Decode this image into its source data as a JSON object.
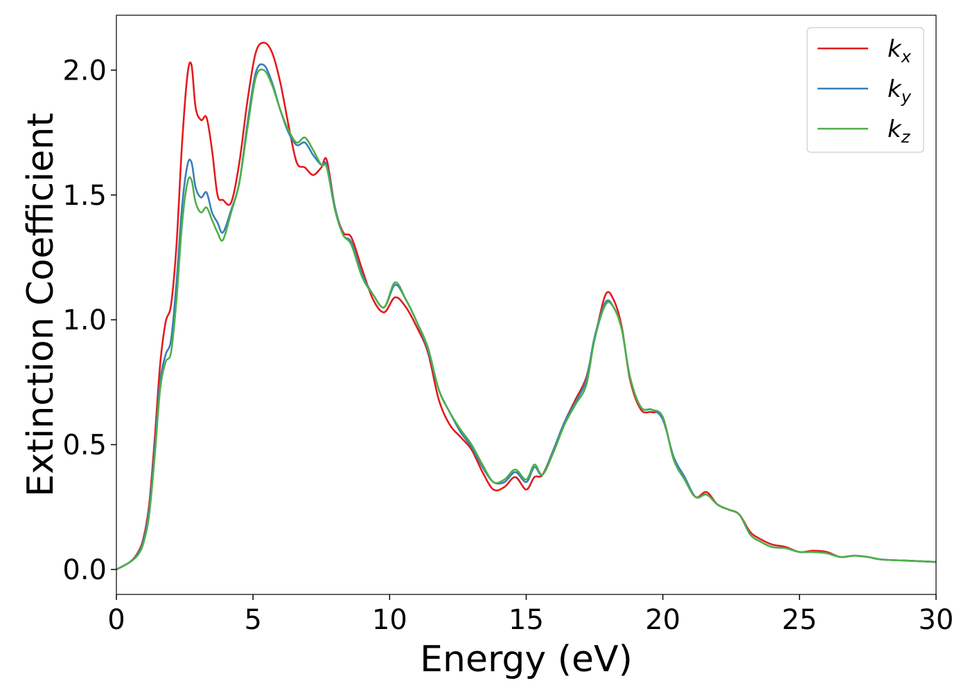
{
  "chart_data": {
    "type": "line",
    "title": "",
    "xlabel": "Energy (eV)",
    "ylabel": "Extinction Coefficient",
    "xlim": [
      0,
      30
    ],
    "ylim": [
      -0.1,
      2.22
    ],
    "xticks": [
      0,
      5,
      10,
      15,
      20,
      25,
      30
    ],
    "xtick_labels": [
      "0",
      "5",
      "10",
      "15",
      "20",
      "25",
      "30"
    ],
    "yticks": [
      0.0,
      0.5,
      1.0,
      1.5,
      2.0
    ],
    "ytick_labels": [
      "0.0",
      "0.5",
      "1.0",
      "1.5",
      "2.0"
    ],
    "grid": false,
    "legend": "top-right",
    "series": [
      {
        "name": "k_x",
        "legend_base": "k",
        "legend_sub": "x",
        "color": "#e41a1c",
        "x": [
          0,
          0.5,
          0.8,
          1.0,
          1.2,
          1.4,
          1.6,
          1.8,
          2.0,
          2.2,
          2.4,
          2.6,
          2.75,
          2.9,
          3.1,
          3.3,
          3.5,
          3.7,
          3.9,
          4.2,
          4.5,
          4.8,
          5.1,
          5.4,
          5.7,
          6.0,
          6.3,
          6.6,
          6.9,
          7.2,
          7.5,
          7.7,
          8.0,
          8.3,
          8.6,
          9.0,
          9.4,
          9.8,
          10.2,
          10.6,
          11.0,
          11.4,
          11.8,
          12.2,
          12.6,
          13.0,
          13.4,
          13.8,
          14.2,
          14.6,
          15.0,
          15.3,
          15.6,
          16.0,
          16.4,
          16.8,
          17.2,
          17.5,
          17.9,
          18.2,
          18.5,
          18.8,
          19.2,
          19.6,
          20.0,
          20.4,
          20.8,
          21.2,
          21.6,
          22.0,
          22.4,
          22.8,
          23.2,
          23.6,
          24.0,
          24.5,
          25.0,
          25.5,
          26.0,
          26.5,
          27.0,
          27.5,
          28.0,
          29.0,
          30.0
        ],
        "y": [
          0.0,
          0.03,
          0.07,
          0.13,
          0.26,
          0.52,
          0.82,
          0.99,
          1.06,
          1.3,
          1.7,
          1.98,
          2.02,
          1.85,
          1.8,
          1.81,
          1.68,
          1.5,
          1.48,
          1.47,
          1.63,
          1.88,
          2.07,
          2.11,
          2.07,
          1.95,
          1.78,
          1.63,
          1.61,
          1.58,
          1.61,
          1.64,
          1.45,
          1.35,
          1.33,
          1.2,
          1.08,
          1.03,
          1.09,
          1.05,
          0.97,
          0.87,
          0.68,
          0.58,
          0.53,
          0.48,
          0.39,
          0.32,
          0.33,
          0.37,
          0.32,
          0.37,
          0.38,
          0.48,
          0.59,
          0.68,
          0.77,
          0.92,
          1.1,
          1.08,
          0.97,
          0.76,
          0.64,
          0.63,
          0.61,
          0.44,
          0.36,
          0.29,
          0.31,
          0.26,
          0.24,
          0.22,
          0.15,
          0.12,
          0.1,
          0.09,
          0.07,
          0.075,
          0.07,
          0.05,
          0.055,
          0.05,
          0.04,
          0.035,
          0.03
        ]
      },
      {
        "name": "k_y",
        "legend_base": "k",
        "legend_sub": "y",
        "color": "#377eb8",
        "x": [
          0,
          0.5,
          0.8,
          1.0,
          1.2,
          1.4,
          1.6,
          1.8,
          2.0,
          2.2,
          2.4,
          2.6,
          2.75,
          2.9,
          3.1,
          3.3,
          3.5,
          3.7,
          3.9,
          4.2,
          4.5,
          4.8,
          5.1,
          5.4,
          5.7,
          6.0,
          6.3,
          6.6,
          6.9,
          7.2,
          7.5,
          7.7,
          8.0,
          8.3,
          8.6,
          9.0,
          9.4,
          9.8,
          10.2,
          10.6,
          11.0,
          11.4,
          11.8,
          12.2,
          12.6,
          13.0,
          13.4,
          13.8,
          14.2,
          14.6,
          15.0,
          15.3,
          15.6,
          16.0,
          16.4,
          16.8,
          17.2,
          17.5,
          17.9,
          18.2,
          18.5,
          18.8,
          19.2,
          19.6,
          20.0,
          20.4,
          20.8,
          21.2,
          21.6,
          22.0,
          22.4,
          22.8,
          23.2,
          23.6,
          24.0,
          24.5,
          25.0,
          25.5,
          26.0,
          26.5,
          27.0,
          27.5,
          28.0,
          29.0,
          30.0
        ],
        "y": [
          0.0,
          0.03,
          0.065,
          0.12,
          0.24,
          0.48,
          0.75,
          0.86,
          0.92,
          1.15,
          1.45,
          1.62,
          1.63,
          1.53,
          1.49,
          1.51,
          1.43,
          1.39,
          1.35,
          1.44,
          1.55,
          1.79,
          1.99,
          2.02,
          1.95,
          1.84,
          1.75,
          1.7,
          1.71,
          1.66,
          1.62,
          1.62,
          1.45,
          1.34,
          1.31,
          1.18,
          1.1,
          1.05,
          1.14,
          1.08,
          0.99,
          0.88,
          0.72,
          0.63,
          0.55,
          0.49,
          0.41,
          0.35,
          0.35,
          0.39,
          0.35,
          0.41,
          0.38,
          0.48,
          0.59,
          0.67,
          0.76,
          0.93,
          1.07,
          1.05,
          0.96,
          0.77,
          0.65,
          0.64,
          0.6,
          0.45,
          0.37,
          0.29,
          0.3,
          0.26,
          0.24,
          0.22,
          0.14,
          0.11,
          0.09,
          0.085,
          0.07,
          0.07,
          0.065,
          0.05,
          0.055,
          0.05,
          0.04,
          0.035,
          0.03
        ]
      },
      {
        "name": "k_z",
        "legend_base": "k",
        "legend_sub": "z",
        "color": "#4daf4a",
        "x": [
          0,
          0.5,
          0.8,
          1.0,
          1.2,
          1.4,
          1.6,
          1.8,
          2.0,
          2.2,
          2.4,
          2.6,
          2.75,
          2.9,
          3.1,
          3.3,
          3.5,
          3.7,
          3.9,
          4.2,
          4.5,
          4.8,
          5.1,
          5.4,
          5.7,
          6.0,
          6.3,
          6.6,
          6.9,
          7.2,
          7.5,
          7.7,
          8.0,
          8.3,
          8.6,
          9.0,
          9.4,
          9.8,
          10.2,
          10.6,
          11.0,
          11.4,
          11.8,
          12.2,
          12.6,
          13.0,
          13.4,
          13.8,
          14.2,
          14.6,
          15.0,
          15.3,
          15.6,
          16.0,
          16.4,
          16.8,
          17.2,
          17.5,
          17.9,
          18.2,
          18.5,
          18.8,
          19.2,
          19.6,
          20.0,
          20.4,
          20.8,
          21.2,
          21.6,
          22.0,
          22.4,
          22.8,
          23.2,
          23.6,
          24.0,
          24.5,
          25.0,
          25.5,
          26.0,
          26.5,
          27.0,
          27.5,
          28.0,
          29.0,
          30.0
        ],
        "y": [
          0.0,
          0.03,
          0.06,
          0.11,
          0.22,
          0.45,
          0.72,
          0.83,
          0.87,
          1.08,
          1.38,
          1.55,
          1.56,
          1.47,
          1.43,
          1.45,
          1.4,
          1.35,
          1.32,
          1.43,
          1.55,
          1.77,
          1.97,
          2.0,
          1.94,
          1.84,
          1.76,
          1.71,
          1.73,
          1.68,
          1.62,
          1.61,
          1.44,
          1.34,
          1.3,
          1.17,
          1.1,
          1.05,
          1.15,
          1.08,
          0.99,
          0.89,
          0.72,
          0.63,
          0.56,
          0.5,
          0.42,
          0.35,
          0.36,
          0.4,
          0.36,
          0.42,
          0.38,
          0.47,
          0.58,
          0.66,
          0.74,
          0.92,
          1.06,
          1.05,
          0.96,
          0.77,
          0.65,
          0.64,
          0.61,
          0.44,
          0.36,
          0.29,
          0.3,
          0.26,
          0.24,
          0.22,
          0.14,
          0.11,
          0.09,
          0.085,
          0.07,
          0.07,
          0.065,
          0.05,
          0.055,
          0.05,
          0.04,
          0.035,
          0.03
        ]
      }
    ]
  }
}
